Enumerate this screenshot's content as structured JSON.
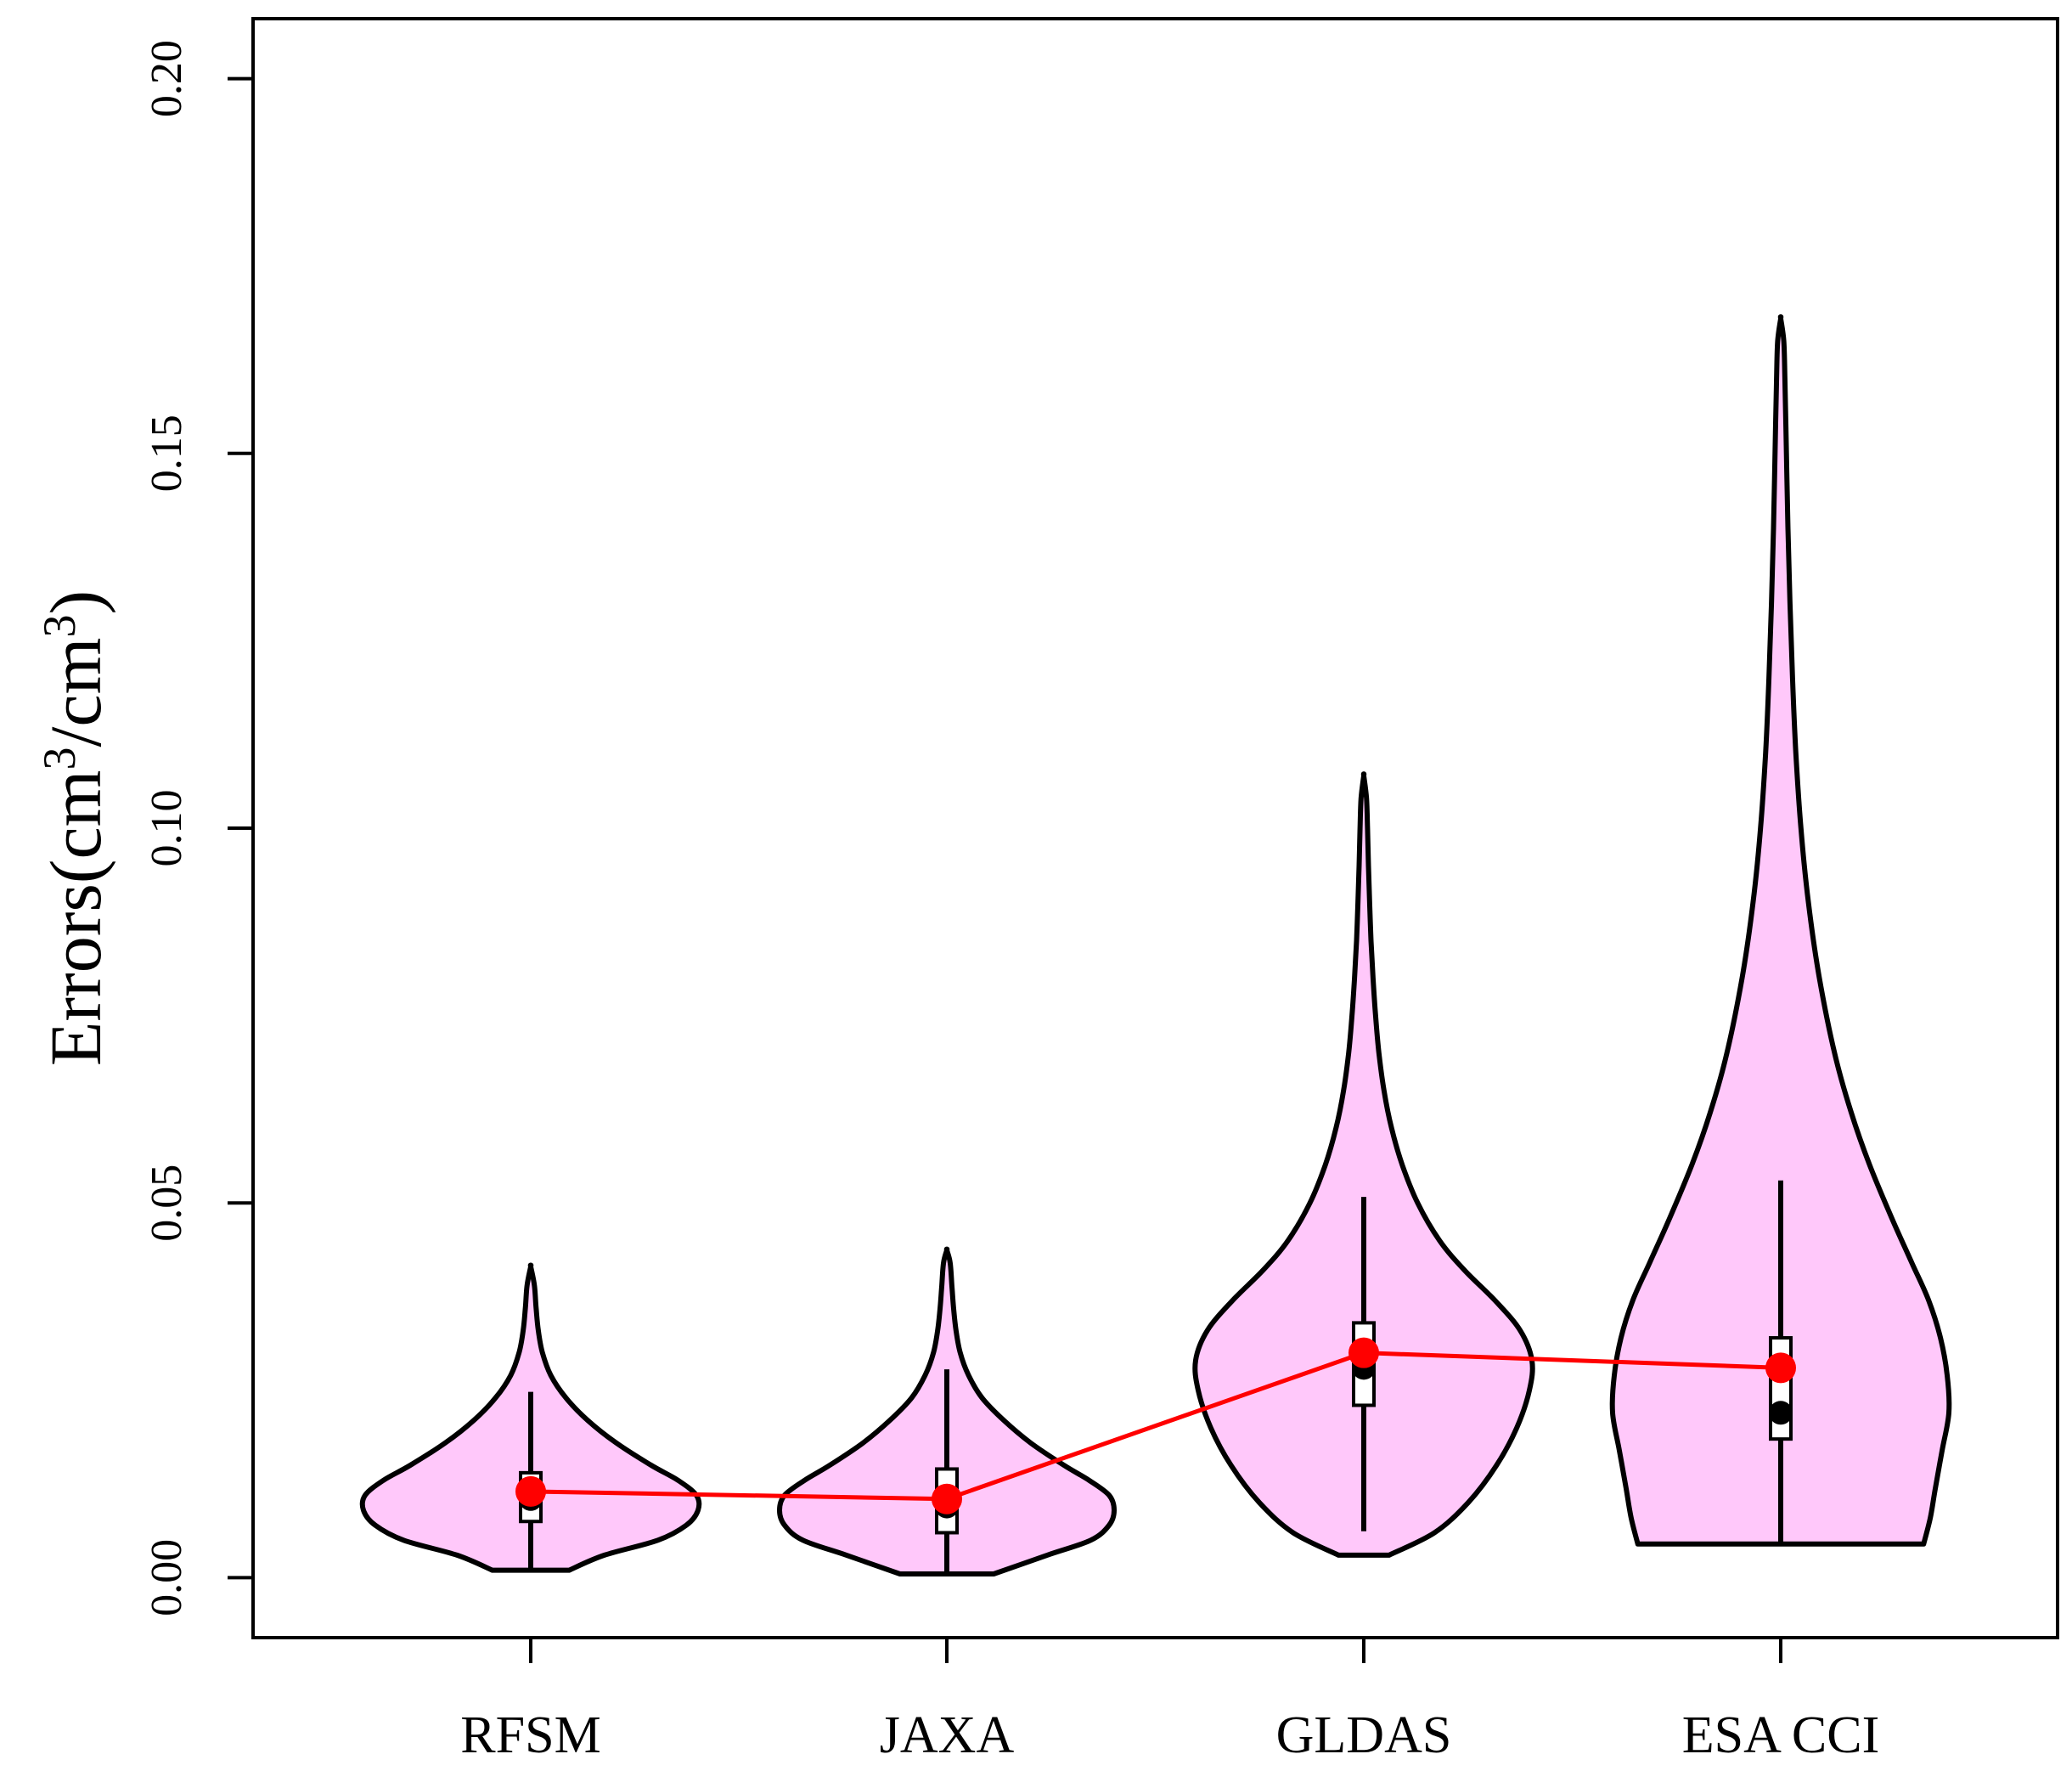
{
  "chart_data": {
    "type": "violin",
    "title": "",
    "xlabel": "",
    "ylabel": {
      "text": "Errors(cm3/cm3)",
      "prefix": "Errors(cm",
      "sup1": "3",
      "mid": "/cm",
      "sup2": "3",
      "suffix": ")"
    },
    "ylim": [
      -0.008,
      0.208
    ],
    "yticks": [
      "0.00",
      "0.05",
      "0.10",
      "0.15",
      "0.20"
    ],
    "ytick_values": [
      0.0,
      0.05,
      0.1,
      0.15,
      0.2
    ],
    "categories": [
      "RFSM",
      "JAXA",
      "GLDAS",
      "ESA CCI"
    ],
    "colors": {
      "violin_fill": "#ffc8fa",
      "outline": "#000000",
      "mean_marker": "#ff0000",
      "mean_line": "#ff0000",
      "median_marker": "#000000",
      "box_fill": "#ffffff"
    },
    "series": [
      {
        "name": "RFSM",
        "min": 0.001,
        "max": 0.0415,
        "whisker_low": 0.001,
        "whisker_high": 0.0248,
        "q1": 0.0075,
        "q3": 0.014,
        "median": 0.0105,
        "mean": 0.0115,
        "profile": [
          [
            0.001,
            0.23
          ],
          [
            0.003,
            0.44
          ],
          [
            0.005,
            0.76
          ],
          [
            0.007,
            0.93
          ],
          [
            0.009,
            1.0
          ],
          [
            0.011,
            0.99
          ],
          [
            0.013,
            0.88
          ],
          [
            0.015,
            0.72
          ],
          [
            0.018,
            0.51
          ],
          [
            0.021,
            0.34
          ],
          [
            0.024,
            0.21
          ],
          [
            0.027,
            0.12
          ],
          [
            0.03,
            0.07
          ],
          [
            0.033,
            0.045
          ],
          [
            0.036,
            0.032
          ],
          [
            0.039,
            0.022
          ],
          [
            0.0415,
            0.0
          ]
        ]
      },
      {
        "name": "JAXA",
        "min": 0.0005,
        "max": 0.0437,
        "whisker_low": 0.0005,
        "whisker_high": 0.0278,
        "q1": 0.006,
        "q3": 0.0145,
        "median": 0.0095,
        "mean": 0.0105,
        "profile": [
          [
            0.0005,
            0.28
          ],
          [
            0.003,
            0.6
          ],
          [
            0.005,
            0.86
          ],
          [
            0.007,
            0.97
          ],
          [
            0.009,
            1.0
          ],
          [
            0.011,
            0.97
          ],
          [
            0.013,
            0.85
          ],
          [
            0.015,
            0.7
          ],
          [
            0.018,
            0.5
          ],
          [
            0.021,
            0.34
          ],
          [
            0.024,
            0.21
          ],
          [
            0.027,
            0.13
          ],
          [
            0.03,
            0.08
          ],
          [
            0.033,
            0.055
          ],
          [
            0.036,
            0.04
          ],
          [
            0.039,
            0.03
          ],
          [
            0.042,
            0.02
          ],
          [
            0.0437,
            0.0
          ]
        ]
      },
      {
        "name": "GLDAS",
        "min": 0.003,
        "max": 0.107,
        "whisker_low": 0.0062,
        "whisker_high": 0.0508,
        "q1": 0.023,
        "q3": 0.034,
        "median": 0.028,
        "mean": 0.03,
        "profile": [
          [
            0.003,
            0.15
          ],
          [
            0.006,
            0.42
          ],
          [
            0.01,
            0.62
          ],
          [
            0.015,
            0.79
          ],
          [
            0.02,
            0.91
          ],
          [
            0.025,
            0.985
          ],
          [
            0.029,
            1.0
          ],
          [
            0.033,
            0.93
          ],
          [
            0.037,
            0.78
          ],
          [
            0.041,
            0.6
          ],
          [
            0.045,
            0.45
          ],
          [
            0.05,
            0.32
          ],
          [
            0.055,
            0.23
          ],
          [
            0.06,
            0.165
          ],
          [
            0.065,
            0.12
          ],
          [
            0.07,
            0.09
          ],
          [
            0.075,
            0.07
          ],
          [
            0.08,
            0.055
          ],
          [
            0.085,
            0.043
          ],
          [
            0.09,
            0.035
          ],
          [
            0.095,
            0.028
          ],
          [
            0.1,
            0.022
          ],
          [
            0.104,
            0.016
          ],
          [
            0.107,
            0.0
          ]
        ]
      },
      {
        "name": "ESA CCI",
        "min": 0.0045,
        "max": 0.168,
        "whisker_low": 0.0045,
        "whisker_high": 0.053,
        "q1": 0.0185,
        "q3": 0.032,
        "median": 0.022,
        "mean": 0.028,
        "profile": [
          [
            0.0045,
            0.85
          ],
          [
            0.008,
            0.89
          ],
          [
            0.012,
            0.92
          ],
          [
            0.017,
            0.96
          ],
          [
            0.022,
            1.0
          ],
          [
            0.027,
            0.99
          ],
          [
            0.032,
            0.95
          ],
          [
            0.037,
            0.88
          ],
          [
            0.042,
            0.78
          ],
          [
            0.048,
            0.66
          ],
          [
            0.055,
            0.53
          ],
          [
            0.062,
            0.42
          ],
          [
            0.07,
            0.32
          ],
          [
            0.08,
            0.23
          ],
          [
            0.09,
            0.165
          ],
          [
            0.1,
            0.12
          ],
          [
            0.11,
            0.09
          ],
          [
            0.12,
            0.07
          ],
          [
            0.13,
            0.055
          ],
          [
            0.14,
            0.043
          ],
          [
            0.15,
            0.034
          ],
          [
            0.16,
            0.025
          ],
          [
            0.165,
            0.018
          ],
          [
            0.168,
            0.0
          ]
        ]
      }
    ]
  }
}
